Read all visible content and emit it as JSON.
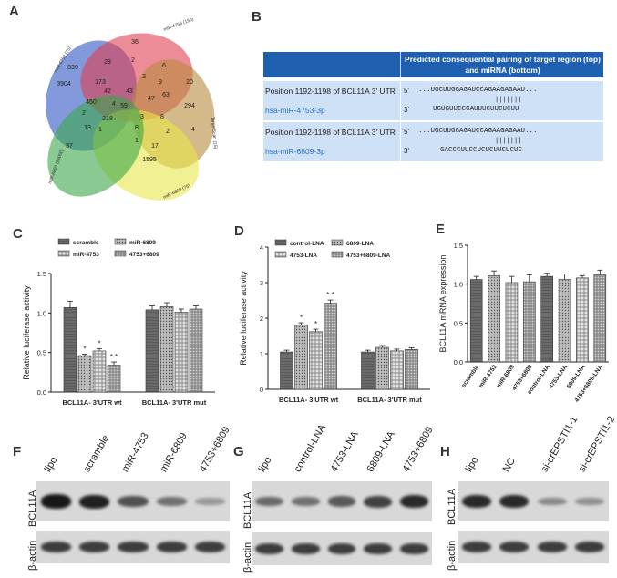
{
  "panels": {
    "A": "A",
    "B": "B",
    "C": "C",
    "D": "D",
    "E": "E",
    "F": "F",
    "G": "G",
    "H": "H"
  },
  "venn": {
    "sets": [
      "miR-4753 (75)",
      "miR-4753 (150)",
      "TargetScan (15)",
      "miR-6809 (75)",
      "miR-6809 (24000)"
    ],
    "numbers": [
      "36",
      "29",
      "2",
      "6",
      "20",
      "839",
      "173",
      "2",
      "9",
      "3904",
      "42",
      "43",
      "63",
      "450",
      "4",
      "59",
      "47",
      "294",
      "2",
      "218",
      "3",
      "8",
      "13",
      "8",
      "2",
      "1",
      "4",
      "1",
      "17",
      "37",
      "1595"
    ]
  },
  "tableB": {
    "header": "Predicted consequential pairing of target region (top) and miRNA (bottom)",
    "rows": [
      {
        "position": "Position 1192-1198 of BCL11A 3' UTR",
        "mirna": "hsa-miR-4753-3p",
        "top_prefix": "5'",
        "top_seq": "...UGCUUGGAGAUCCAGAAGAGAAU...",
        "bars": "|||||||",
        "bottom_prefix": "3'",
        "bottom_seq": "UGUGUUCCGAUUUCUUCUCUU"
      },
      {
        "position": "Position 1192-1198 of BCL11A 3' UTR",
        "mirna": "hsa-miR-6809-3p",
        "top_prefix": "5'",
        "top_seq": "...UGCUUGGAGAUCCAGAAGAGAAU...",
        "bars": "|||||||",
        "bottom_prefix": "3'",
        "bottom_seq": "GACCCUUCCUCUCUUCUCUC"
      }
    ]
  },
  "blots": {
    "F": {
      "lanes": [
        "lipo",
        "scramble",
        "miR-4753",
        "miR-6809",
        "4753+6809"
      ],
      "band_intensity": [
        0.95,
        0.9,
        0.6,
        0.4,
        0.15
      ]
    },
    "G": {
      "lanes": [
        "lipo",
        "control-LNA",
        "4753-LNA",
        "6809-LNA",
        "4753+6809"
      ],
      "band_intensity": [
        0.45,
        0.4,
        0.55,
        0.7,
        0.85
      ]
    },
    "H": {
      "lanes": [
        "lipo",
        "NC",
        "si-crEPSTI1-1",
        "si-crEPSTI1-2"
      ],
      "band_intensity": [
        0.85,
        0.85,
        0.25,
        0.2
      ]
    },
    "target_label": "BCL11A",
    "control_label": "β-actin"
  },
  "chart_data": [
    {
      "type": "bar",
      "panel": "C",
      "ylabel": "Relative luciferase activity",
      "ylim": [
        0,
        1.5
      ],
      "yticks": [
        "0.0",
        "0.5",
        "1.0",
        "1.5"
      ],
      "groups": [
        "BCL11A- 3'UTR   wt",
        "BCL11A- 3'UTR   mut"
      ],
      "series": [
        {
          "name": "scramble",
          "values": [
            1.07,
            1.04
          ],
          "err": [
            0.08,
            0.05
          ]
        },
        {
          "name": "miR-6809",
          "values": [
            0.46,
            1.08
          ],
          "err": [
            0.02,
            0.05
          ]
        },
        {
          "name": "miR-4753",
          "values": [
            0.52,
            1.01
          ],
          "err": [
            0.03,
            0.04
          ]
        },
        {
          "name": "4753+6809",
          "values": [
            0.34,
            1.05
          ],
          "err": [
            0.04,
            0.04
          ]
        }
      ],
      "annotations": [
        "*",
        "*",
        "* *"
      ]
    },
    {
      "type": "bar",
      "panel": "D",
      "ylabel": "Relative luciferase activity",
      "ylim": [
        0,
        4
      ],
      "yticks": [
        "0",
        "1",
        "2",
        "3",
        "4"
      ],
      "groups": [
        "BCL11A- 3'UTR   wt",
        "BCL11A- 3'UTR   mut"
      ],
      "series": [
        {
          "name": "control-LNA",
          "values": [
            1.05,
            1.05
          ],
          "err": [
            0.05,
            0.05
          ]
        },
        {
          "name": "6809-LNA",
          "values": [
            1.8,
            1.18
          ],
          "err": [
            0.07,
            0.05
          ]
        },
        {
          "name": "4753-LNA",
          "values": [
            1.62,
            1.08
          ],
          "err": [
            0.07,
            0.05
          ]
        },
        {
          "name": "4753+6809-LNA",
          "values": [
            2.42,
            1.12
          ],
          "err": [
            0.09,
            0.05
          ]
        }
      ],
      "annotations": [
        "*",
        "*",
        "* *"
      ]
    },
    {
      "type": "bar",
      "panel": "E",
      "ylabel": "BCL11A mRNA expression",
      "ylim": [
        0,
        1.5
      ],
      "yticks": [
        "0.0",
        "0.5",
        "1.0",
        "1.5"
      ],
      "categories": [
        "scramble",
        "miR-4753",
        "miR-6809",
        "4753+6809",
        "control-LNA",
        "4753-LNA",
        "6809-LNA",
        "4753+6809-LNA"
      ],
      "values": [
        1.06,
        1.11,
        1.02,
        1.03,
        1.1,
        1.06,
        1.08,
        1.12
      ],
      "err": [
        0.04,
        0.06,
        0.08,
        0.09,
        0.04,
        0.07,
        0.03,
        0.06
      ]
    }
  ]
}
